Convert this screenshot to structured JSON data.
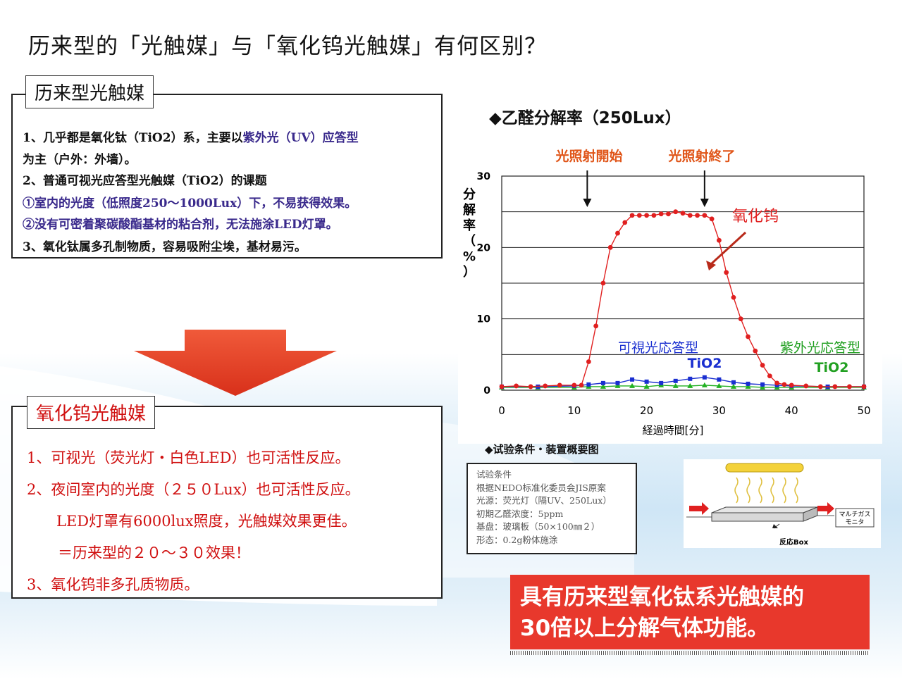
{
  "title": "历来型的「光触媒」与「氧化钨光触媒」有何区别？",
  "box1": {
    "label": "历来型光触媒",
    "lines": [
      "1、几乎都是氧化钛（TiO2）系，主要以",
      "紫外光（UV）应答型",
      "为主（户外：外墙）。",
      "2、普通可视光应答型光触媒（TiO2）的课题",
      "①室内的光度（低照度250～1000Lux）下，不易获得效果。",
      "②没有可密着聚碳酸酯基材的粘合剂，无法施涂LED灯罩。",
      "3、氧化钛属多孔制物质，容易吸附尘埃，基材易污。"
    ]
  },
  "box2": {
    "label": "氧化钨光触媒",
    "lines": [
      "1、可视光（荧光灯・白色LED）也可活性反应。",
      "2、夜间室内的光度（２５０Lux）也可活性反应。",
      "LED灯罩有6000lux照度，光触媒效果更佳。",
      "＝历来型的２０～３０效果！",
      "3、氧化钨非多孔质物质。"
    ]
  },
  "chart_title": "◆乙醛分解率（250Lux）",
  "chart_data": {
    "type": "line",
    "xlabel": "経過時間[分]",
    "ylabel": "分解率（%）",
    "xlim": [
      0,
      50
    ],
    "ylim": [
      0,
      30
    ],
    "x_ticks": [
      "0",
      "10",
      "20",
      "30",
      "40",
      "50"
    ],
    "y_ticks": [
      "0",
      "10",
      "20",
      "30"
    ],
    "grid": true,
    "annotations": [
      "光照射開始",
      "光照射終了"
    ],
    "series": [
      {
        "name": "氧化钨",
        "color": "#e02020",
        "x": [
          0,
          2,
          4,
          6,
          8,
          10,
          11,
          12,
          13,
          14,
          15,
          16,
          17,
          18,
          19,
          20,
          21,
          22,
          23,
          24,
          25,
          26,
          27,
          28,
          29,
          30,
          31,
          32,
          33,
          34,
          35,
          36,
          37,
          38,
          39,
          40,
          42,
          44,
          46,
          48,
          50
        ],
        "y": [
          0.5,
          0.6,
          0.5,
          0.6,
          0.7,
          0.7,
          0.7,
          4,
          9,
          15,
          20,
          22,
          23.5,
          24.5,
          24.5,
          24.5,
          24.5,
          24.7,
          24.7,
          25,
          24.8,
          24.5,
          24.5,
          24.5,
          24,
          21,
          16.5,
          13,
          10,
          7.5,
          5.5,
          3.5,
          2,
          1,
          0.8,
          0.7,
          0.6,
          0.5,
          0.5,
          0.5,
          0.5
        ]
      },
      {
        "name": "可視光応答型 TiO2",
        "color": "#1a2fd0",
        "x": [
          0,
          5,
          10,
          12,
          14,
          16,
          18,
          20,
          22,
          24,
          26,
          28,
          30,
          32,
          34,
          36,
          38,
          40,
          45,
          50
        ],
        "y": [
          0.5,
          0.5,
          0.6,
          0.8,
          1,
          1,
          1.5,
          1.2,
          1,
          1.3,
          1.6,
          1.8,
          1.5,
          1.1,
          0.9,
          0.8,
          0.7,
          0.6,
          0.5,
          0.5
        ]
      },
      {
        "name": "紫外光応答型 TiO2",
        "color": "#22b022",
        "x": [
          0,
          5,
          10,
          12,
          14,
          16,
          18,
          20,
          22,
          24,
          26,
          28,
          30,
          32,
          34,
          36,
          38,
          40,
          45,
          50
        ],
        "y": [
          0.4,
          0.4,
          0.4,
          0.5,
          0.5,
          0.6,
          0.6,
          0.5,
          0.7,
          0.6,
          0.6,
          0.7,
          0.6,
          0.5,
          0.5,
          0.4,
          0.4,
          0.4,
          0.4,
          0.4
        ]
      }
    ],
    "series_labels": {
      "tungsten": "氧化钨",
      "vis_a": "可視光応答型",
      "vis_b": "TiO2",
      "uv_a": "紫外光応答型",
      "uv_b": "TiO2"
    }
  },
  "conditions": {
    "subtitle": "◆试验条件・装置概要图",
    "lines": [
      "试验条件",
      "根据NEDO标准化委员会JIS原案",
      "光源：荧光灯（隔UV、250Lux）",
      "初期乙醛浓度：5ppm",
      "基盘：玻璃板（50×100㎜２）",
      "形态：0.2g粉体施涂"
    ]
  },
  "diagram": {
    "box_label": "反応Box",
    "analyzer_label": "マルチガス\nモニタ"
  },
  "banner": {
    "line1": "具有历来型氧化钛系光触媒的",
    "line2": "30倍以上分解气体功能。"
  },
  "colors": {
    "red": "#d01010",
    "banner": "#e8382c",
    "arrow": "#e8381c"
  }
}
